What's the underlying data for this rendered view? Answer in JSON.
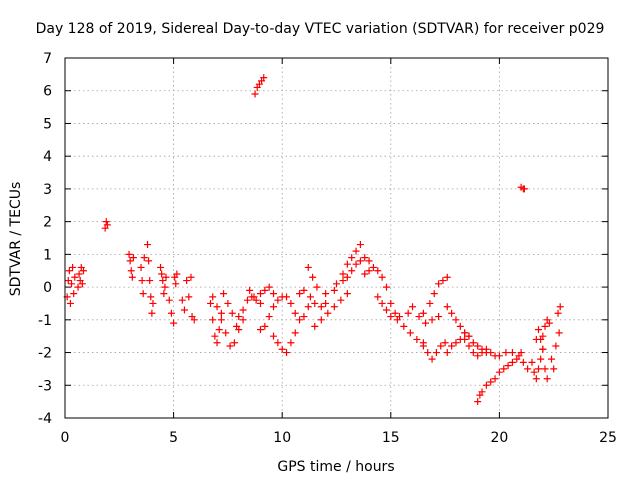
{
  "chart_data": {
    "type": "scatter",
    "title": "Day 128 of 2019, Sidereal Day-to-day VTEC variation (SDTVAR) for receiver p029",
    "xlabel": "GPS time / hours",
    "ylabel": "SDTVAR / TECUs",
    "xlim": [
      0,
      25
    ],
    "ylim": [
      -4,
      7
    ],
    "xticks": [
      "0",
      "5",
      "10",
      "15",
      "20",
      "25"
    ],
    "yticks": [
      "-4",
      "-3",
      "-2",
      "-1",
      "0",
      "1",
      "2",
      "3",
      "4",
      "5",
      "6",
      "7"
    ],
    "grid": true,
    "marker": "+",
    "color": "#ff0000",
    "series": [
      {
        "name": "SDTVAR",
        "points": [
          [
            0.1,
            -0.3
          ],
          [
            0.15,
            0.2
          ],
          [
            0.2,
            0.5
          ],
          [
            0.25,
            -0.5
          ],
          [
            0.3,
            0.1
          ],
          [
            0.35,
            0.6
          ],
          [
            0.4,
            -0.2
          ],
          [
            0.45,
            0.3
          ],
          [
            0.6,
            0.0
          ],
          [
            0.65,
            0.4
          ],
          [
            0.7,
            0.2
          ],
          [
            0.75,
            0.6
          ],
          [
            0.8,
            0.1
          ],
          [
            0.85,
            0.5
          ],
          [
            1.85,
            1.8
          ],
          [
            1.9,
            2.0
          ],
          [
            1.95,
            1.9
          ],
          [
            2.95,
            1.0
          ],
          [
            3.0,
            0.8
          ],
          [
            3.05,
            0.5
          ],
          [
            3.1,
            0.3
          ],
          [
            3.15,
            0.9
          ],
          [
            3.5,
            0.6
          ],
          [
            3.55,
            0.2
          ],
          [
            3.6,
            -0.2
          ],
          [
            3.65,
            0.9
          ],
          [
            3.8,
            1.3
          ],
          [
            3.85,
            0.8
          ],
          [
            3.9,
            0.2
          ],
          [
            3.95,
            -0.3
          ],
          [
            4.0,
            -0.8
          ],
          [
            4.05,
            -0.5
          ],
          [
            4.4,
            0.6
          ],
          [
            4.45,
            0.4
          ],
          [
            4.5,
            0.2
          ],
          [
            4.55,
            -0.2
          ],
          [
            4.6,
            0.0
          ],
          [
            4.65,
            0.3
          ],
          [
            4.8,
            -0.4
          ],
          [
            4.9,
            -0.8
          ],
          [
            5.0,
            -1.1
          ],
          [
            5.05,
            0.3
          ],
          [
            5.1,
            0.1
          ],
          [
            5.15,
            0.4
          ],
          [
            5.4,
            -0.4
          ],
          [
            5.5,
            -0.7
          ],
          [
            5.6,
            0.2
          ],
          [
            5.7,
            -0.3
          ],
          [
            5.8,
            0.3
          ],
          [
            5.85,
            -0.9
          ],
          [
            5.95,
            -1.0
          ],
          [
            6.7,
            -0.5
          ],
          [
            6.8,
            -1.0
          ],
          [
            6.9,
            -1.5
          ],
          [
            7.0,
            -1.7
          ],
          [
            7.1,
            -1.3
          ],
          [
            7.2,
            -0.8
          ],
          [
            6.8,
            -0.3
          ],
          [
            7.0,
            -0.6
          ],
          [
            7.3,
            -0.2
          ],
          [
            7.5,
            -0.5
          ],
          [
            7.7,
            -0.8
          ],
          [
            7.9,
            -1.2
          ],
          [
            7.2,
            -1.0
          ],
          [
            7.4,
            -1.4
          ],
          [
            7.6,
            -1.8
          ],
          [
            7.8,
            -1.7
          ],
          [
            8.0,
            -1.3
          ],
          [
            8.2,
            -1.0
          ],
          [
            8.0,
            -0.9
          ],
          [
            8.2,
            -0.7
          ],
          [
            8.4,
            -0.4
          ],
          [
            8.6,
            -0.3
          ],
          [
            8.8,
            -0.4
          ],
          [
            9.0,
            -0.5
          ],
          [
            8.5,
            -0.1
          ],
          [
            8.7,
            -0.3
          ],
          [
            9.0,
            -0.2
          ],
          [
            9.2,
            -0.1
          ],
          [
            9.4,
            0.0
          ],
          [
            9.6,
            -0.2
          ],
          [
            9.0,
            -1.3
          ],
          [
            9.2,
            -1.2
          ],
          [
            9.4,
            -0.9
          ],
          [
            9.6,
            -0.6
          ],
          [
            9.8,
            -0.4
          ],
          [
            10.0,
            -0.3
          ],
          [
            9.6,
            -1.5
          ],
          [
            9.8,
            -1.7
          ],
          [
            10.0,
            -1.9
          ],
          [
            10.2,
            -2.0
          ],
          [
            10.4,
            -1.7
          ],
          [
            10.6,
            -1.4
          ],
          [
            10.2,
            -0.3
          ],
          [
            10.4,
            -0.5
          ],
          [
            10.6,
            -0.8
          ],
          [
            10.8,
            -1.0
          ],
          [
            11.0,
            -0.9
          ],
          [
            11.2,
            -0.6
          ],
          [
            10.8,
            -0.2
          ],
          [
            11.0,
            -0.1
          ],
          [
            11.3,
            -0.3
          ],
          [
            11.5,
            -0.5
          ],
          [
            11.8,
            -0.6
          ],
          [
            12.0,
            -0.5
          ],
          [
            11.5,
            -1.2
          ],
          [
            11.8,
            -1.0
          ],
          [
            12.1,
            -0.8
          ],
          [
            12.4,
            -0.6
          ],
          [
            12.7,
            -0.4
          ],
          [
            13.0,
            -0.2
          ],
          [
            11.2,
            0.6
          ],
          [
            11.4,
            0.3
          ],
          [
            11.6,
            0.0
          ],
          [
            12.0,
            -0.2
          ],
          [
            12.4,
            -0.1
          ],
          [
            12.8,
            0.2
          ],
          [
            12.5,
            0.1
          ],
          [
            12.8,
            0.4
          ],
          [
            13.0,
            0.7
          ],
          [
            13.2,
            0.9
          ],
          [
            13.4,
            1.1
          ],
          [
            13.6,
            1.3
          ],
          [
            13.0,
            0.3
          ],
          [
            13.2,
            0.5
          ],
          [
            13.4,
            0.7
          ],
          [
            13.6,
            0.8
          ],
          [
            13.8,
            0.9
          ],
          [
            14.0,
            0.8
          ],
          [
            13.8,
            0.4
          ],
          [
            14.0,
            0.5
          ],
          [
            14.2,
            0.6
          ],
          [
            14.4,
            0.5
          ],
          [
            14.6,
            0.3
          ],
          [
            14.8,
            0.0
          ],
          [
            14.4,
            -0.3
          ],
          [
            14.6,
            -0.5
          ],
          [
            14.8,
            -0.7
          ],
          [
            15.0,
            -0.9
          ],
          [
            15.2,
            -0.8
          ],
          [
            15.4,
            -0.9
          ],
          [
            15.0,
            -0.5
          ],
          [
            15.3,
            -1.0
          ],
          [
            15.6,
            -1.2
          ],
          [
            15.9,
            -1.4
          ],
          [
            16.2,
            -1.6
          ],
          [
            16.5,
            -1.7
          ],
          [
            15.8,
            -0.8
          ],
          [
            16.0,
            -0.6
          ],
          [
            16.3,
            -0.9
          ],
          [
            16.6,
            -1.1
          ],
          [
            16.9,
            -1.0
          ],
          [
            17.2,
            -0.9
          ],
          [
            16.5,
            -1.8
          ],
          [
            16.7,
            -2.0
          ],
          [
            16.9,
            -2.2
          ],
          [
            17.1,
            -2.0
          ],
          [
            17.3,
            -1.8
          ],
          [
            17.5,
            -1.7
          ],
          [
            16.5,
            -0.8
          ],
          [
            16.8,
            -0.5
          ],
          [
            17.0,
            -0.2
          ],
          [
            17.2,
            0.1
          ],
          [
            17.4,
            0.2
          ],
          [
            17.6,
            0.3
          ],
          [
            17.6,
            -0.6
          ],
          [
            17.8,
            -0.8
          ],
          [
            18.0,
            -1.0
          ],
          [
            18.2,
            -1.2
          ],
          [
            18.4,
            -1.4
          ],
          [
            18.6,
            -1.5
          ],
          [
            17.6,
            -2.0
          ],
          [
            17.8,
            -1.8
          ],
          [
            18.0,
            -1.7
          ],
          [
            18.2,
            -1.6
          ],
          [
            18.4,
            -1.6
          ],
          [
            18.6,
            -1.8
          ],
          [
            18.4,
            -1.4
          ],
          [
            18.6,
            -1.5
          ],
          [
            18.8,
            -1.7
          ],
          [
            19.0,
            -1.8
          ],
          [
            19.2,
            -1.9
          ],
          [
            19.4,
            -2.0
          ],
          [
            18.8,
            -2.0
          ],
          [
            19.0,
            -2.1
          ],
          [
            19.2,
            -2.0
          ],
          [
            19.4,
            -1.9
          ],
          [
            19.6,
            -2.0
          ],
          [
            19.8,
            -2.1
          ],
          [
            19.0,
            -3.5
          ],
          [
            19.1,
            -3.3
          ],
          [
            19.2,
            -3.2
          ],
          [
            19.4,
            -3.0
          ],
          [
            19.6,
            -2.9
          ],
          [
            19.8,
            -2.8
          ],
          [
            20.0,
            -2.6
          ],
          [
            20.2,
            -2.5
          ],
          [
            20.4,
            -2.4
          ],
          [
            20.6,
            -2.3
          ],
          [
            20.8,
            -2.2
          ],
          [
            21.0,
            -2.0
          ],
          [
            20.0,
            -2.1
          ],
          [
            20.3,
            -2.0
          ],
          [
            20.6,
            -2.0
          ],
          [
            20.9,
            -2.1
          ],
          [
            21.1,
            -2.3
          ],
          [
            21.3,
            -2.5
          ],
          [
            21.5,
            -2.3
          ],
          [
            21.6,
            -2.6
          ],
          [
            21.7,
            -2.8
          ],
          [
            21.8,
            -2.5
          ],
          [
            21.9,
            -2.2
          ],
          [
            22.0,
            -1.9
          ],
          [
            21.7,
            -1.6
          ],
          [
            21.8,
            -1.3
          ],
          [
            21.9,
            -1.6
          ],
          [
            22.0,
            -1.9
          ],
          [
            22.1,
            -2.5
          ],
          [
            22.2,
            -2.8
          ],
          [
            22.0,
            -1.5
          ],
          [
            22.1,
            -1.2
          ],
          [
            22.2,
            -1.0
          ],
          [
            22.3,
            -1.1
          ],
          [
            22.4,
            -2.2
          ],
          [
            22.5,
            -2.5
          ],
          [
            22.6,
            -1.8
          ],
          [
            22.7,
            -0.8
          ],
          [
            22.75,
            -1.4
          ],
          [
            22.8,
            -0.6
          ],
          [
            8.75,
            5.9
          ],
          [
            8.85,
            6.1
          ],
          [
            8.95,
            6.2
          ],
          [
            9.05,
            6.3
          ],
          [
            9.15,
            6.4
          ],
          [
            21.0,
            3.05
          ],
          [
            21.1,
            3.0
          ],
          [
            21.15,
            3.0
          ]
        ]
      }
    ]
  }
}
